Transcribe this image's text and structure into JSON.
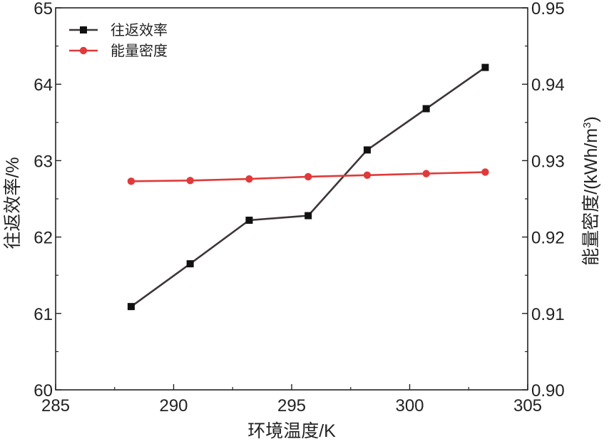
{
  "chart_data": {
    "type": "line",
    "xlabel": "环境温度/K",
    "ylabel_left": "往返效率/%",
    "ylabel_right": "能量密度/(kWh/m",
    "ylabel_right_superscript": "3",
    "ylabel_right_suffix": ")",
    "xlim": [
      285,
      305
    ],
    "ylim_left": [
      60,
      65
    ],
    "ylim_right": [
      0.9,
      0.95
    ],
    "x_ticks": [
      "285",
      "290",
      "295",
      "300",
      "305"
    ],
    "y_left_ticks": [
      "60",
      "61",
      "62",
      "63",
      "64",
      "65"
    ],
    "y_right_ticks": [
      "0.90",
      "0.91",
      "0.92",
      "0.93",
      "0.94",
      "0.95"
    ],
    "grid": false,
    "legend_position": "top-left",
    "series": [
      {
        "name": "往返效率",
        "axis": "left",
        "marker": "square",
        "color": "#3d3636",
        "x": [
          288.2,
          290.7,
          293.2,
          295.7,
          298.2,
          300.7,
          303.2
        ],
        "y": [
          61.09,
          61.65,
          62.22,
          62.28,
          63.14,
          63.68,
          64.22
        ]
      },
      {
        "name": "能量密度",
        "axis": "right",
        "marker": "circle",
        "color": "#e03a3a",
        "x": [
          288.2,
          290.7,
          293.2,
          295.7,
          298.2,
          300.7,
          303.2
        ],
        "y": [
          0.9273,
          0.9274,
          0.9276,
          0.9279,
          0.9281,
          0.9283,
          0.9285
        ]
      }
    ]
  }
}
